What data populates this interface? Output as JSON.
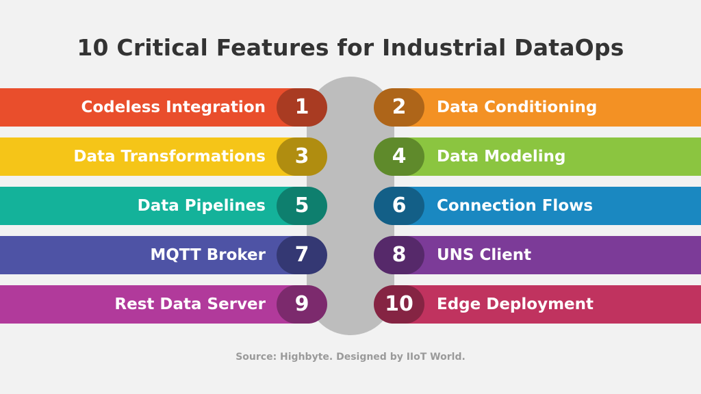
{
  "title": "10 Critical Features for Industrial DataOps",
  "source": "Source: Highbyte. Designed by IIoT World.",
  "colors": {
    "background": "#f2f2f2",
    "spine": "#bdbdbd",
    "feature_1": "#e94e2c",
    "feature_1_pill": "#a93b22",
    "feature_2": "#f39124",
    "feature_2_pill": "#ae6519",
    "feature_3": "#f5c518",
    "feature_3_pill": "#b08d10",
    "feature_4": "#8bc540",
    "feature_4_pill": "#5f8a2b",
    "feature_5": "#14b29a",
    "feature_5_pill": "#0e7f6e",
    "feature_6": "#1a88c1",
    "feature_6_pill": "#135f87",
    "feature_7": "#4e53a5",
    "feature_7_pill": "#343873",
    "feature_8": "#7c3b98",
    "feature_8_pill": "#56296a",
    "feature_9": "#b13a9b",
    "feature_9_pill": "#7c2a6d",
    "feature_10": "#c0335f",
    "feature_10_pill": "#852443"
  },
  "features": [
    {
      "number": "1",
      "label": "Codeless Integration"
    },
    {
      "number": "2",
      "label": "Data Conditioning"
    },
    {
      "number": "3",
      "label": "Data Transformations"
    },
    {
      "number": "4",
      "label": "Data Modeling"
    },
    {
      "number": "5",
      "label": "Data Pipelines"
    },
    {
      "number": "6",
      "label": "Connection Flows"
    },
    {
      "number": "7",
      "label": "MQTT Broker"
    },
    {
      "number": "8",
      "label": "UNS Client"
    },
    {
      "number": "9",
      "label": "Rest Data Server"
    },
    {
      "number": "10",
      "label": "Edge Deployment"
    }
  ]
}
